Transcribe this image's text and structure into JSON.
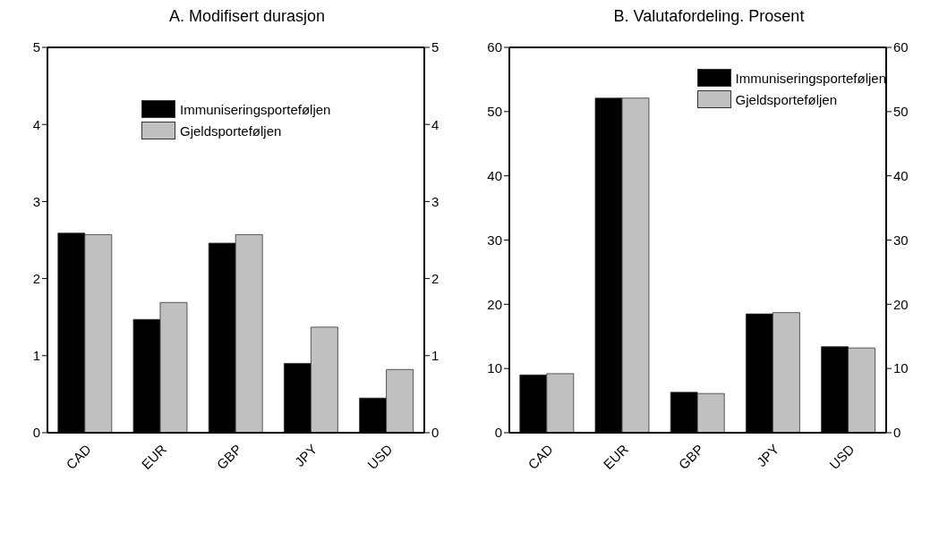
{
  "chart_data": [
    {
      "type": "bar",
      "title": "A. Modifisert durasjon",
      "categories": [
        "CAD",
        "EUR",
        "GBP",
        "JPY",
        "USD"
      ],
      "series": [
        {
          "name": "Immuniseringsporteføljen",
          "color": "#000000",
          "values": [
            2.59,
            1.47,
            2.46,
            0.9,
            0.45
          ]
        },
        {
          "name": "Gjeldsporteføljen",
          "color": "#c0c0c0",
          "values": [
            2.57,
            1.69,
            2.57,
            1.37,
            0.82
          ]
        }
      ],
      "ylim": [
        0,
        5
      ],
      "yticks": [
        0,
        1,
        2,
        3,
        4,
        5
      ],
      "y2lim": [
        0,
        5
      ],
      "y2ticks": [
        0,
        1,
        2,
        3,
        4,
        5
      ],
      "legend": "top"
    },
    {
      "type": "bar",
      "title": "B. Valutafordeling. Prosent",
      "categories": [
        "CAD",
        "EUR",
        "GBP",
        "JPY",
        "USD"
      ],
      "series": [
        {
          "name": "Immuniseringsporteføljen",
          "color": "#000000",
          "values": [
            9.0,
            52.1,
            6.3,
            18.5,
            13.4
          ]
        },
        {
          "name": "Gjeldsporteføljen",
          "color": "#c0c0c0",
          "values": [
            9.2,
            52.1,
            6.1,
            18.7,
            13.2
          ]
        }
      ],
      "ylim": [
        0,
        60
      ],
      "yticks": [
        0,
        10,
        20,
        30,
        40,
        50,
        60
      ],
      "y2lim": [
        0,
        60
      ],
      "y2ticks": [
        0,
        10,
        20,
        30,
        40,
        50,
        60
      ],
      "legend": "top right"
    }
  ]
}
